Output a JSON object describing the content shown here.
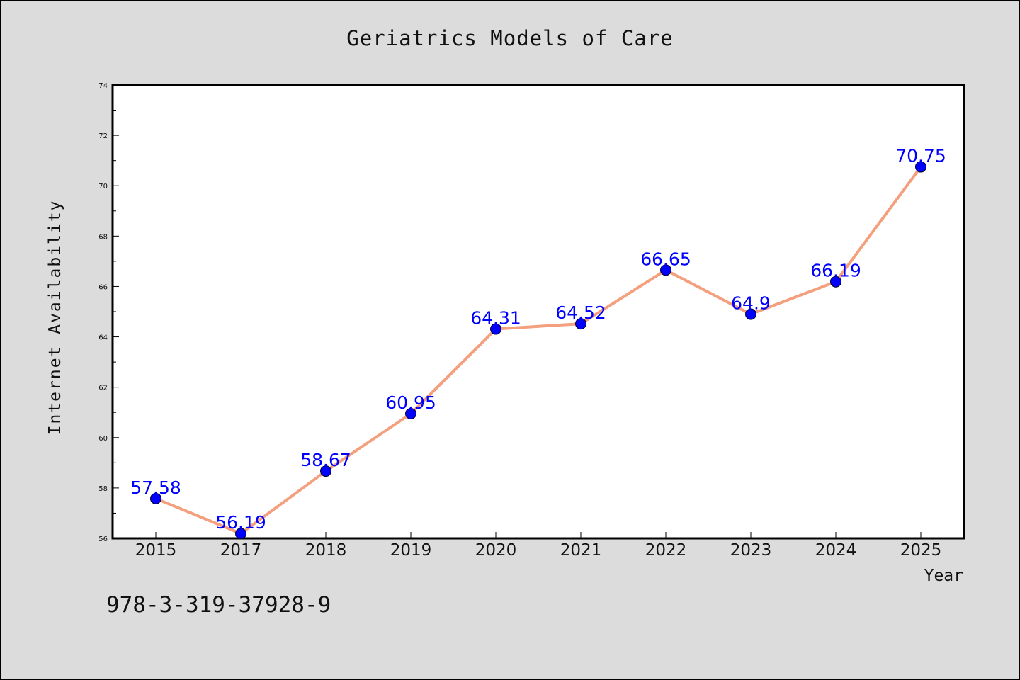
{
  "chart_data": {
    "type": "line",
    "title": "Geriatrics Models of Care",
    "xlabel": "Year",
    "ylabel": "Internet Availability",
    "categories": [
      "2015",
      "2017",
      "2018",
      "2019",
      "2020",
      "2021",
      "2022",
      "2023",
      "2024",
      "2025"
    ],
    "values": [
      57.58,
      56.19,
      58.67,
      60.95,
      64.31,
      64.52,
      66.65,
      64.9,
      66.19,
      70.75
    ],
    "data_labels": [
      "57.58",
      "56.19",
      "58.67",
      "60.95",
      "64.31",
      "64.52",
      "66.65",
      "64.9",
      "66.19",
      "70.75"
    ],
    "ylim": [
      56,
      74
    ],
    "yticks": [
      "56",
      "58",
      "60",
      "62",
      "64",
      "66",
      "68",
      "70",
      "72",
      "74"
    ],
    "grid": false,
    "legend": "none",
    "line_color": "#f4a07e",
    "marker_color": "#0000ff",
    "label_color": "#0000ff"
  },
  "footnote": "978-3-319-37928-9"
}
